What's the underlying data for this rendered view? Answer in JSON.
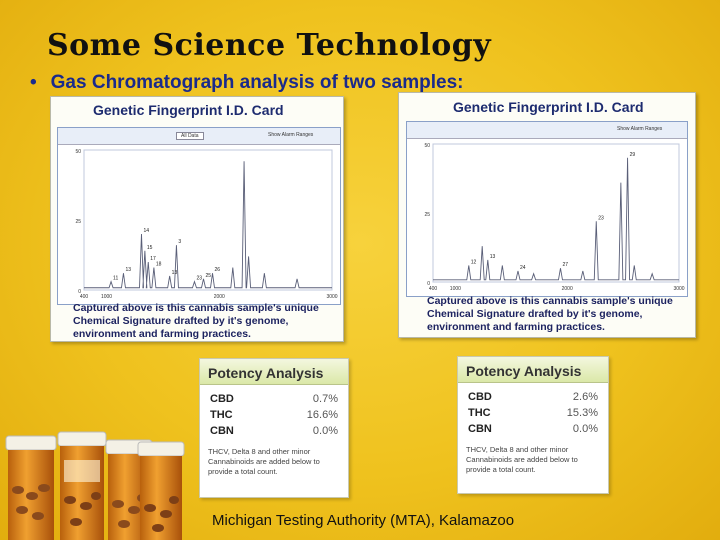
{
  "slide": {
    "title": "Some Science Technology",
    "bullet": "Gas Chromatograph analysis of two samples:",
    "footer": "Michigan Testing Authority (MTA), Kalamazoo"
  },
  "cards": [
    {
      "header": "Genetic  Fingerprint I.D. Card",
      "caption": "Captured above is this cannabis sample's unique Chemical  Signature drafted by it's genome, environment and farming practices.",
      "toolbar": {
        "tab_all": "All Data",
        "alarm": "Show Alarm Ranges"
      },
      "chart_data": {
        "type": "line",
        "xlim": [
          1000,
          3000
        ],
        "ylim": [
          0,
          50
        ],
        "x_ticks": [
          "400",
          "1000",
          "2000",
          "3000"
        ],
        "y_ticks": [
          "50",
          "25",
          "0"
        ],
        "peak_labels": [
          "11",
          "13",
          "14",
          "15",
          "17",
          "18",
          "13",
          "3",
          "23",
          "25",
          "26"
        ],
        "peaks": [
          {
            "x": 1040,
            "y": 3
          },
          {
            "x": 1150,
            "y": 6
          },
          {
            "x": 1310,
            "y": 20
          },
          {
            "x": 1340,
            "y": 14
          },
          {
            "x": 1370,
            "y": 10
          },
          {
            "x": 1420,
            "y": 8
          },
          {
            "x": 1560,
            "y": 5
          },
          {
            "x": 1620,
            "y": 16
          },
          {
            "x": 1780,
            "y": 3
          },
          {
            "x": 1860,
            "y": 4
          },
          {
            "x": 1940,
            "y": 6
          },
          {
            "x": 2120,
            "y": 8
          },
          {
            "x": 2220,
            "y": 46
          },
          {
            "x": 2260,
            "y": 12
          },
          {
            "x": 2400,
            "y": 6
          },
          {
            "x": 2690,
            "y": 4
          }
        ]
      }
    },
    {
      "header": "Genetic  Fingerprint I.D. Card",
      "caption": "Captured above is this cannabis sample's unique Chemical  Signature drafted by it's genome, environment and farming practices.",
      "toolbar": {
        "tab_all": "",
        "alarm": "Show Alarm Ranges"
      },
      "chart_data": {
        "type": "line",
        "xlim": [
          1000,
          3000
        ],
        "ylim": [
          0,
          50
        ],
        "x_ticks": [
          "400",
          "1000",
          "2000",
          "3000"
        ],
        "y_ticks": [
          "50",
          "25",
          "0"
        ],
        "peak_labels": [
          "12",
          "13",
          "24",
          "27",
          "23",
          "29"
        ],
        "peaks": [
          {
            "x": 1120,
            "y": 6
          },
          {
            "x": 1240,
            "y": 13
          },
          {
            "x": 1290,
            "y": 8
          },
          {
            "x": 1420,
            "y": 6
          },
          {
            "x": 1560,
            "y": 4
          },
          {
            "x": 1700,
            "y": 3
          },
          {
            "x": 1940,
            "y": 5
          },
          {
            "x": 2140,
            "y": 4
          },
          {
            "x": 2260,
            "y": 22
          },
          {
            "x": 2480,
            "y": 36
          },
          {
            "x": 2540,
            "y": 45
          },
          {
            "x": 2600,
            "y": 6
          },
          {
            "x": 2760,
            "y": 3
          }
        ]
      }
    }
  ],
  "potency": [
    {
      "header": "Potency  Analysis",
      "rows": [
        {
          "label": "CBD",
          "value": "0.7%"
        },
        {
          "label": "THC",
          "value": "16.6%"
        },
        {
          "label": "CBN",
          "value": "0.0%"
        }
      ],
      "note": "THCV, Delta 8 and other minor Cannabinoids are added below to provide a total count."
    },
    {
      "header": "Potency  Analysis",
      "rows": [
        {
          "label": "CBD",
          "value": "2.6%"
        },
        {
          "label": "THC",
          "value": "15.3%"
        },
        {
          "label": "CBN",
          "value": "0.0%"
        }
      ],
      "note": "THCV, Delta 8 and other minor Cannabinoids are added below to provide a total count."
    }
  ],
  "colors": {
    "chart_line": "#5a5f78",
    "chart_bg": "#ffffff",
    "accent_text": "#1a2a8c"
  }
}
